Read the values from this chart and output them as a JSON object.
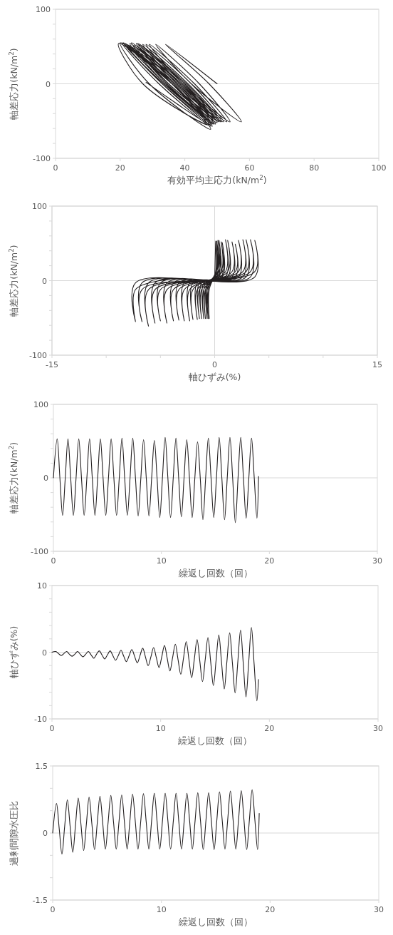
{
  "chart_data": [
    {
      "type": "line",
      "xlabel": "有効平均主応力(kN/m$^{2}$)",
      "ylabel": "軸差応力(kN/m$^{2}$)",
      "xlim": [
        0,
        100
      ],
      "ylim": [
        -100,
        100
      ],
      "xticks": [
        0,
        20,
        40,
        60,
        80,
        100
      ],
      "yticks": [
        -100,
        {
          "value": -80,
          "label": null
        },
        {
          "value": -60,
          "label": null
        },
        {
          "value": -40,
          "label": null
        },
        {
          "value": -20,
          "label": null
        },
        0,
        {
          "value": 20,
          "label": null
        },
        {
          "value": 40,
          "label": null
        },
        {
          "value": 60,
          "label": null
        },
        {
          "value": 80,
          "label": null
        },
        100
      ],
      "grid": "y",
      "series": [
        {
          "color": "#231f20",
          "x": [
            50,
            34,
            47.5,
            57.5,
            42,
            31,
            44.5,
            54,
            39.5,
            29,
            43,
            53,
            38.5,
            28,
            42,
            52,
            37.5,
            27,
            41,
            51.5,
            37,
            26,
            40.5,
            51,
            36,
            25.5,
            40,
            50.5,
            36,
            25,
            39.5,
            50,
            35,
            24.5,
            39,
            50,
            35,
            24,
            39,
            49.5,
            34.5,
            23.5,
            38.5,
            49.5,
            34,
            23,
            38,
            49,
            34,
            22.5,
            38,
            49,
            33.5,
            22,
            37,
            48.5,
            33,
            21.5,
            37,
            48.5,
            33,
            21,
            36.5,
            48,
            32,
            20.5,
            36,
            48,
            29,
            20,
            36,
            47.5,
            27,
            19.5,
            36,
            48,
            28
          ],
          "values": [
            0,
            53,
            0,
            -51,
            0,
            53,
            0,
            -51,
            0,
            53,
            0,
            -51,
            0,
            53,
            0,
            -51,
            0,
            53,
            0,
            -51,
            0,
            53,
            0,
            -51,
            0,
            54,
            0,
            -51,
            0,
            54,
            0,
            -52,
            0,
            52,
            0,
            -52,
            0,
            51,
            0,
            -54,
            0,
            55,
            0,
            -54,
            0,
            54,
            0,
            -53,
            0,
            52,
            0,
            -54,
            0,
            49,
            0,
            -57,
            0,
            54,
            0,
            -54,
            0,
            55,
            0,
            -57,
            0,
            55,
            0,
            -61,
            0,
            55,
            0,
            -55,
            0,
            54,
            0,
            -55,
            2
          ]
        }
      ]
    },
    {
      "type": "line",
      "xlabel": "軸ひずみ(%)",
      "ylabel": "軸差応力(kN/m$^{2}$)",
      "xlim": [
        -15,
        15
      ],
      "ylim": [
        -100,
        100
      ],
      "xticks": [
        -15,
        {
          "value": -10,
          "label": null
        },
        {
          "value": -5,
          "label": null
        },
        0,
        {
          "value": 5,
          "label": null
        },
        {
          "value": 10,
          "label": null
        },
        15
      ],
      "yticks": [
        -100,
        {
          "value": -80,
          "label": null
        },
        {
          "value": -60,
          "label": null
        },
        {
          "value": -40,
          "label": null
        },
        {
          "value": -20,
          "label": null
        },
        0,
        {
          "value": 20,
          "label": null
        },
        {
          "value": 40,
          "label": null
        },
        {
          "value": 60,
          "label": null
        },
        {
          "value": 80,
          "label": null
        },
        100
      ],
      "grid": true,
      "series": [
        {
          "color": "#231f20",
          "x": [
            0,
            0.1,
            0.1,
            -0.5,
            -0.5,
            -0.5,
            0.1,
            0.1,
            0.1,
            -0.6,
            -0.6,
            -0.6,
            0.1,
            0.1,
            0.1,
            -0.7,
            -0.7,
            -0.7,
            0.1,
            0.1,
            0.1,
            -0.85,
            -0.85,
            -0.85,
            0.2,
            0.2,
            0.2,
            -1.0,
            -1.0,
            -1.0,
            0.2,
            0.2,
            0.2,
            -1.2,
            -1.2,
            -1.2,
            0.3,
            0.3,
            0.3,
            -1.4,
            -1.4,
            -1.4,
            0.4,
            0.4,
            0.4,
            -1.6,
            -1.6,
            -1.6,
            0.6,
            0.6,
            0.6,
            -2.0,
            -2.0,
            -2.0,
            0.7,
            0.7,
            0.7,
            -2.3,
            -2.3,
            -2.3,
            1.0,
            1.0,
            1.0,
            -2.8,
            -2.8,
            -2.8,
            1.2,
            1.2,
            1.2,
            -3.3,
            -3.3,
            -3.3,
            1.6,
            1.6,
            1.6,
            -3.8,
            -3.8,
            -3.8,
            1.9,
            1.9,
            1.9,
            -4.4,
            -4.4,
            -4.4,
            2.2,
            2.2,
            2.2,
            -5.0,
            -5.0,
            -5.0,
            2.6,
            2.6,
            2.6,
            -5.5,
            -5.5,
            -5.5,
            2.9,
            2.9,
            2.9,
            -6.1,
            -6.1,
            -6.1,
            3.3,
            3.3,
            3.3,
            -6.7,
            -6.7,
            -6.7,
            3.7,
            3.7,
            3.7,
            -7.3,
            -7.3,
            -7.3,
            -4.1
          ],
          "values": [
            0,
            53,
            5,
            -3,
            -51,
            -12,
            12,
            53,
            5,
            -3,
            -51,
            -12,
            12,
            53,
            5,
            -3,
            -51,
            -12,
            12,
            53,
            5,
            -3,
            -51,
            -12,
            12,
            53,
            5,
            -3,
            -51,
            -12,
            12,
            53,
            5,
            -3,
            -51,
            -12,
            12,
            54,
            5,
            -3,
            -51,
            -12,
            12,
            54,
            5,
            -3,
            -52,
            -12,
            12,
            52,
            5,
            -3,
            -52,
            -12,
            12,
            51,
            5,
            -3,
            -54,
            -12,
            12,
            55,
            5,
            -3,
            -54,
            -12,
            12,
            54,
            5,
            -3,
            -53,
            -12,
            12,
            52,
            5,
            -3,
            -54,
            -12,
            12,
            49,
            5,
            -3,
            -57,
            -12,
            12,
            54,
            5,
            -3,
            -54,
            -12,
            12,
            55,
            5,
            -3,
            -57,
            -12,
            12,
            55,
            5,
            -3,
            -61,
            -12,
            12,
            55,
            5,
            -3,
            -55,
            -12,
            12,
            54,
            5,
            -3,
            -55,
            -12,
            2
          ]
        }
      ]
    },
    {
      "type": "line",
      "xlabel": "繰返し回数（回）",
      "ylabel": "軸差応力(kN/m$^{2}$)",
      "xlim": [
        0,
        30
      ],
      "ylim": [
        -100,
        100
      ],
      "xticks": [
        0,
        10,
        20,
        30
      ],
      "yticks": [
        -100,
        {
          "value": -80,
          "label": null
        },
        {
          "value": -60,
          "label": null
        },
        {
          "value": -40,
          "label": null
        },
        {
          "value": -20,
          "label": null
        },
        0,
        {
          "value": 20,
          "label": null
        },
        {
          "value": 40,
          "label": null
        },
        {
          "value": 60,
          "label": null
        },
        {
          "value": 80,
          "label": null
        },
        100
      ],
      "grid": "y",
      "series": [
        {
          "color": "#231f20",
          "x": [
            0,
            0.35,
            0.6,
            0.85,
            1.1,
            1.35,
            1.6,
            1.85,
            2.1,
            2.35,
            2.6,
            2.85,
            3.1,
            3.35,
            3.6,
            3.85,
            4.1,
            4.35,
            4.6,
            4.85,
            5.1,
            5.35,
            5.6,
            5.85,
            6.1,
            6.35,
            6.6,
            6.85,
            7.1,
            7.35,
            7.6,
            7.85,
            8.1,
            8.35,
            8.6,
            8.85,
            9.1,
            9.35,
            9.6,
            9.85,
            10.1,
            10.35,
            10.6,
            10.85,
            11.1,
            11.35,
            11.6,
            11.85,
            12.1,
            12.35,
            12.6,
            12.85,
            13.1,
            13.35,
            13.6,
            13.85,
            14.1,
            14.35,
            14.6,
            14.85,
            15.1,
            15.35,
            15.6,
            15.85,
            16.1,
            16.35,
            16.6,
            16.85,
            17.1,
            17.35,
            17.6,
            17.85,
            18.1,
            18.35,
            18.6,
            18.85,
            19
          ],
          "values": [
            0,
            53,
            0,
            -51,
            0,
            53,
            0,
            -51,
            0,
            53,
            0,
            -51,
            0,
            53,
            0,
            -51,
            0,
            53,
            0,
            -51,
            0,
            53,
            0,
            -51,
            0,
            54,
            0,
            -51,
            0,
            54,
            0,
            -52,
            0,
            52,
            0,
            -52,
            0,
            51,
            0,
            -54,
            0,
            55,
            0,
            -54,
            0,
            54,
            0,
            -53,
            0,
            52,
            0,
            -54,
            0,
            49,
            0,
            -57,
            0,
            54,
            0,
            -54,
            0,
            55,
            0,
            -57,
            0,
            55,
            0,
            -61,
            0,
            55,
            0,
            -55,
            0,
            54,
            0,
            -55,
            2
          ]
        }
      ]
    },
    {
      "type": "line",
      "xlabel": "繰返し回数（回）",
      "ylabel": "軸ひずみ(%)",
      "xlim": [
        0,
        30
      ],
      "ylim": [
        -10,
        10
      ],
      "xticks": [
        0,
        10,
        20,
        30
      ],
      "yticks": [
        -10,
        {
          "value": -8,
          "label": null
        },
        {
          "value": -6,
          "label": null
        },
        {
          "value": -4,
          "label": null
        },
        {
          "value": -2,
          "label": null
        },
        0,
        {
          "value": 2,
          "label": null
        },
        {
          "value": 4,
          "label": null
        },
        {
          "value": 6,
          "label": null
        },
        {
          "value": 8,
          "label": null
        },
        10
      ],
      "grid": "y",
      "series": [
        {
          "color": "#231f20",
          "x": [
            0,
            0.35,
            0.6,
            0.85,
            1.1,
            1.35,
            1.6,
            1.85,
            2.1,
            2.35,
            2.6,
            2.85,
            3.1,
            3.35,
            3.6,
            3.85,
            4.1,
            4.35,
            4.6,
            4.85,
            5.1,
            5.35,
            5.6,
            5.85,
            6.1,
            6.35,
            6.6,
            6.85,
            7.1,
            7.35,
            7.6,
            7.85,
            8.1,
            8.35,
            8.6,
            8.85,
            9.1,
            9.35,
            9.6,
            9.85,
            10.1,
            10.35,
            10.6,
            10.85,
            11.1,
            11.35,
            11.6,
            11.85,
            12.1,
            12.35,
            12.6,
            12.85,
            13.1,
            13.35,
            13.6,
            13.85,
            14.1,
            14.35,
            14.6,
            14.85,
            15.1,
            15.35,
            15.6,
            15.85,
            16.1,
            16.35,
            16.6,
            16.85,
            17.1,
            17.35,
            17.6,
            17.85,
            18.1,
            18.35,
            18.6,
            18.85,
            19
          ],
          "values": [
            0,
            0.1,
            -0.2,
            -0.5,
            -0.2,
            0.1,
            -0.3,
            -0.6,
            -0.3,
            0.1,
            -0.3,
            -0.7,
            -0.3,
            0.1,
            -0.4,
            -0.9,
            -0.3,
            0.2,
            -0.4,
            -1.0,
            -0.4,
            0.2,
            -0.5,
            -1.2,
            -0.5,
            0.3,
            -0.6,
            -1.4,
            -0.5,
            0.4,
            -0.6,
            -1.6,
            -0.5,
            0.6,
            -0.7,
            -2.0,
            -0.7,
            0.7,
            -0.8,
            -2.3,
            -0.7,
            1.0,
            -0.9,
            -2.8,
            -0.8,
            1.2,
            -1.1,
            -3.3,
            -0.9,
            1.6,
            -1.1,
            -3.8,
            -1.0,
            1.9,
            -1.3,
            -4.4,
            -1.1,
            2.2,
            -1.4,
            -5.0,
            -1.2,
            2.6,
            -1.5,
            -5.5,
            -1.3,
            2.9,
            -1.6,
            -6.1,
            -1.4,
            3.3,
            -1.7,
            -6.7,
            -1.5,
            3.7,
            -1.8,
            -7.3,
            -4.1
          ]
        }
      ]
    },
    {
      "type": "line",
      "xlabel": "繰返し回数（回）",
      "ylabel": "過剰間隙水圧比",
      "xlim": [
        0,
        30
      ],
      "ylim": [
        -1.5,
        1.5
      ],
      "xticks": [
        0,
        10,
        20,
        30
      ],
      "yticks": [
        -1.5,
        {
          "value": -1,
          "label": null
        },
        {
          "value": -0.5,
          "label": null
        },
        0,
        {
          "value": 0.5,
          "label": null
        },
        {
          "value": 1,
          "label": null
        },
        1.5
      ],
      "grid": "y",
      "series": [
        {
          "color": "#231f20",
          "x": [
            0,
            0.35,
            0.6,
            0.85,
            1.1,
            1.35,
            1.6,
            1.85,
            2.1,
            2.35,
            2.6,
            2.85,
            3.1,
            3.35,
            3.6,
            3.85,
            4.1,
            4.35,
            4.6,
            4.85,
            5.1,
            5.35,
            5.6,
            5.85,
            6.1,
            6.35,
            6.6,
            6.85,
            7.1,
            7.35,
            7.6,
            7.85,
            8.1,
            8.35,
            8.6,
            8.85,
            9.1,
            9.35,
            9.6,
            9.85,
            10.1,
            10.35,
            10.6,
            10.85,
            11.1,
            11.35,
            11.6,
            11.85,
            12.1,
            12.35,
            12.6,
            12.85,
            13.1,
            13.35,
            13.6,
            13.85,
            14.1,
            14.35,
            14.6,
            14.85,
            15.1,
            15.35,
            15.6,
            15.85,
            16.1,
            16.35,
            16.6,
            16.85,
            17.1,
            17.35,
            17.6,
            17.85,
            18.1,
            18.35,
            18.6,
            18.85,
            19
          ],
          "values": [
            0,
            0.66,
            0.1,
            -0.47,
            0.14,
            0.74,
            0.16,
            -0.43,
            0.18,
            0.78,
            0.2,
            -0.39,
            0.2,
            0.8,
            0.22,
            -0.37,
            0.22,
            0.82,
            0.23,
            -0.36,
            0.24,
            0.84,
            0.24,
            -0.36,
            0.25,
            0.85,
            0.25,
            -0.36,
            0.26,
            0.87,
            0.26,
            -0.36,
            0.26,
            0.88,
            0.26,
            -0.36,
            0.27,
            0.89,
            0.27,
            -0.36,
            0.27,
            0.89,
            0.27,
            -0.36,
            0.27,
            0.89,
            0.27,
            -0.36,
            0.27,
            0.89,
            0.27,
            -0.36,
            0.27,
            0.9,
            0.27,
            -0.37,
            0.28,
            0.9,
            0.27,
            -0.37,
            0.28,
            0.92,
            0.28,
            -0.36,
            0.29,
            0.94,
            0.29,
            -0.36,
            0.3,
            0.95,
            0.29,
            -0.37,
            0.3,
            0.97,
            0.3,
            -0.37,
            0.44
          ]
        }
      ]
    }
  ]
}
